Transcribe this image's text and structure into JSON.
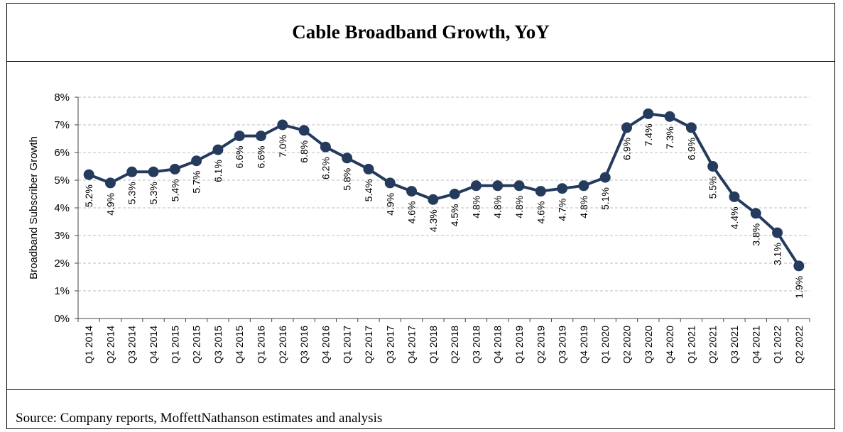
{
  "header": {
    "title": "Cable Broadband Growth, YoY"
  },
  "footer": {
    "source": "Source: Company reports, MoffettNathanson estimates and analysis"
  },
  "chart_data": {
    "type": "line",
    "title": "Cable Broadband Growth, YoY",
    "xlabel": "",
    "ylabel": "Broadband Subscriber Growth",
    "ylim": [
      0,
      8
    ],
    "yticks": [
      "0%",
      "1%",
      "2%",
      "3%",
      "4%",
      "5%",
      "6%",
      "7%",
      "8%"
    ],
    "grid": true,
    "line_color": "#243b5e",
    "categories": [
      "Q1 2014",
      "Q2 2014",
      "Q3 2014",
      "Q4 2014",
      "Q1 2015",
      "Q2 2015",
      "Q3 2015",
      "Q4 2015",
      "Q1 2016",
      "Q2 2016",
      "Q3 2016",
      "Q4 2016",
      "Q1 2017",
      "Q2 2017",
      "Q3 2017",
      "Q4 2017",
      "Q1 2018",
      "Q2 2018",
      "Q3 2018",
      "Q4 2018",
      "Q1 2019",
      "Q2 2019",
      "Q3 2019",
      "Q4 2019",
      "Q1 2020",
      "Q2 2020",
      "Q3 2020",
      "Q4 2020",
      "Q1 2021",
      "Q2 2021",
      "Q3 2021",
      "Q4 2021",
      "Q1 2022",
      "Q2 2022"
    ],
    "values": [
      5.2,
      4.9,
      5.3,
      5.3,
      5.4,
      5.7,
      6.1,
      6.6,
      6.6,
      7.0,
      6.8,
      6.2,
      5.8,
      5.4,
      4.9,
      4.6,
      4.3,
      4.5,
      4.8,
      4.8,
      4.8,
      4.6,
      4.7,
      4.8,
      5.1,
      6.9,
      7.4,
      7.3,
      6.9,
      5.5,
      4.4,
      3.8,
      3.1,
      1.9
    ],
    "data_labels": [
      "5.2%",
      "4.9%",
      "5.3%",
      "5.3%",
      "5.4%",
      "5.7%",
      "6.1%",
      "6.6%",
      "6.6%",
      "7.0%",
      "6.8%",
      "6.2%",
      "5.8%",
      "5.4%",
      "4.9%",
      "4.6%",
      "4.3%",
      "4.5%",
      "4.8%",
      "4.8%",
      "4.8%",
      "4.6%",
      "4.7%",
      "4.8%",
      "5.1%",
      "6.9%",
      "7.4%",
      "7.3%",
      "6.9%",
      "5.5%",
      "4.4%",
      "3.8%",
      "3.1%",
      "1.9%"
    ]
  }
}
